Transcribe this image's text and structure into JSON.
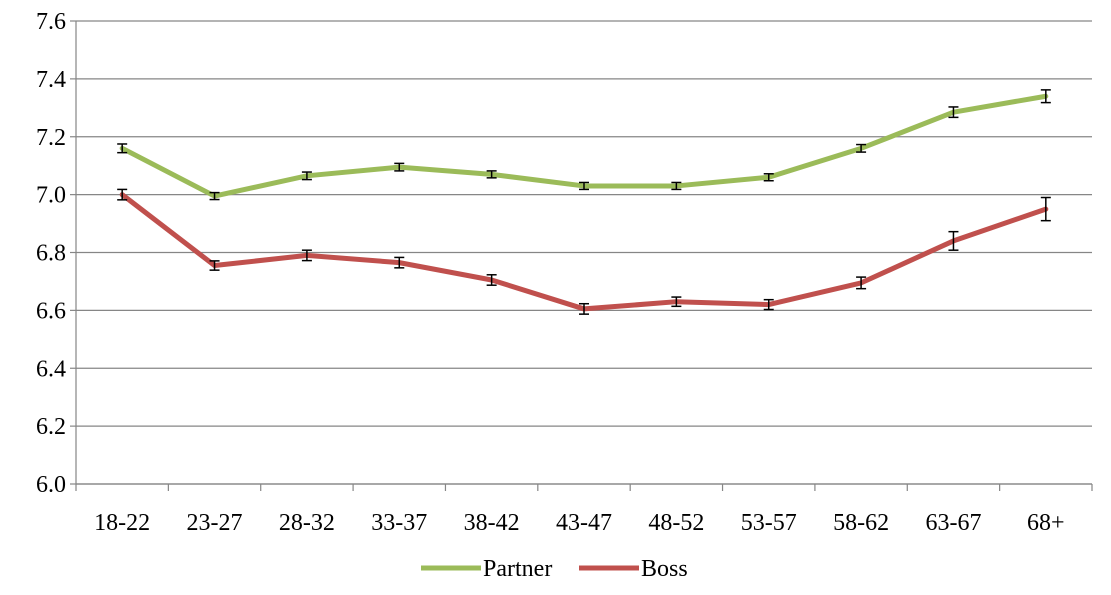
{
  "chart_data": {
    "type": "line",
    "title": "",
    "xlabel": "",
    "ylabel": "",
    "categories": [
      "18-22",
      "23-27",
      "28-32",
      "33-37",
      "38-42",
      "43-47",
      "48-52",
      "53-57",
      "58-62",
      "63-67",
      "68+"
    ],
    "ylim": [
      6.0,
      7.6
    ],
    "yticks": [
      "6.0",
      "6.2",
      "6.4",
      "6.6",
      "6.8",
      "7.0",
      "7.2",
      "7.4",
      "7.6"
    ],
    "grid": "horizontal",
    "legend_position": "bottom",
    "series": [
      {
        "name": "Partner",
        "color": "#9bbb59",
        "values": [
          7.16,
          6.995,
          7.065,
          7.095,
          7.07,
          7.03,
          7.03,
          7.06,
          7.16,
          7.285,
          7.34
        ],
        "errors": [
          0.015,
          0.012,
          0.013,
          0.013,
          0.012,
          0.012,
          0.012,
          0.012,
          0.013,
          0.018,
          0.022
        ]
      },
      {
        "name": "Boss",
        "color": "#c0504d",
        "values": [
          7.0,
          6.755,
          6.79,
          6.765,
          6.705,
          6.605,
          6.63,
          6.62,
          6.695,
          6.84,
          6.95
        ],
        "errors": [
          0.018,
          0.016,
          0.018,
          0.018,
          0.018,
          0.018,
          0.016,
          0.017,
          0.02,
          0.032,
          0.04
        ]
      }
    ]
  }
}
